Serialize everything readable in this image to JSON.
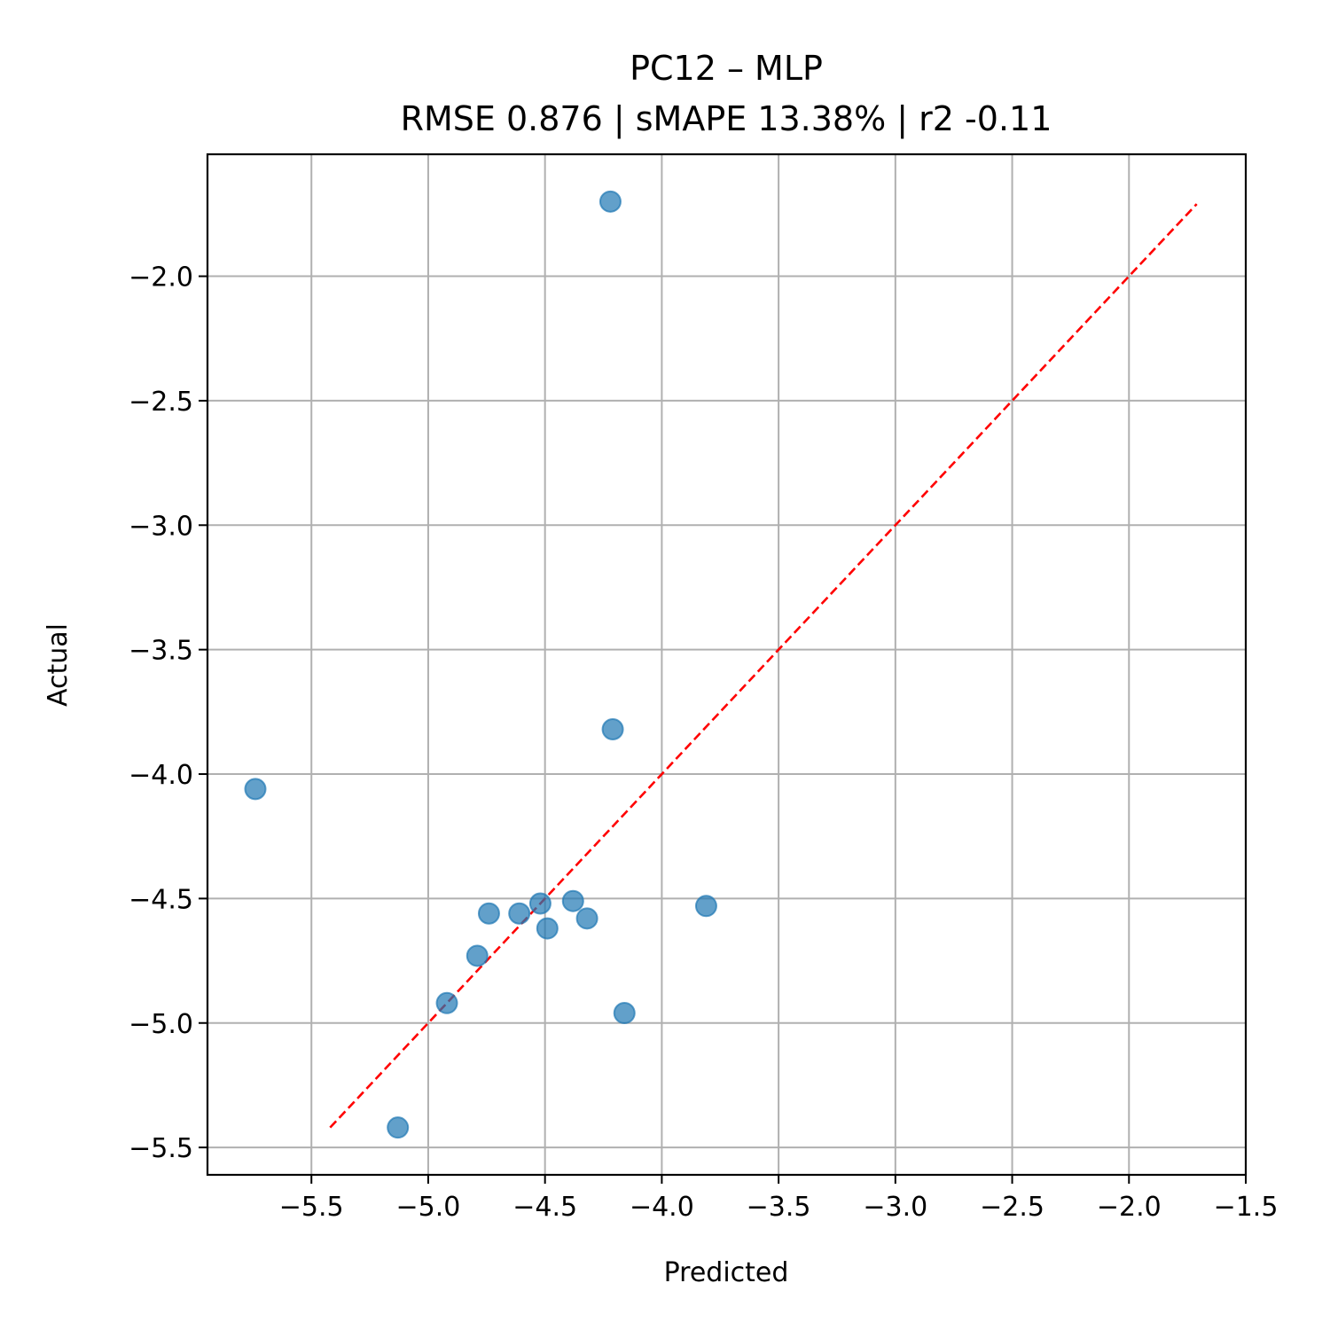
{
  "chart_data": {
    "type": "scatter",
    "title": "PC12 – MLP",
    "subtitle": "RMSE 0.876 | sMAPE 13.38%  | r2 -0.11",
    "xlabel": "Predicted",
    "ylabel": "Actual",
    "xlim": [
      -5.945,
      -1.5
    ],
    "ylim": [
      -5.61,
      -1.51
    ],
    "xticks": [
      -5.5,
      -5.0,
      -4.5,
      -4.0,
      -3.5,
      -3.0,
      -2.5,
      -2.0,
      -1.5
    ],
    "xtick_labels": [
      "−5.5",
      "−5.0",
      "−4.5",
      "−4.0",
      "−3.5",
      "−3.0",
      "−2.5",
      "−2.0",
      "−1.5"
    ],
    "yticks": [
      -2.0,
      -2.5,
      -3.0,
      -3.5,
      -4.0,
      -4.5,
      -5.0,
      -5.5
    ],
    "ytick_labels": [
      "−2.0",
      "−2.5",
      "−3.0",
      "−3.5",
      "−4.0",
      "−4.5",
      "−5.0",
      "−5.5"
    ],
    "grid": true,
    "point_color": "#1f77b4",
    "line_color": "#ff0000",
    "points": [
      {
        "x": -4.22,
        "y": -1.7
      },
      {
        "x": -4.21,
        "y": -3.82
      },
      {
        "x": -5.74,
        "y": -4.06
      },
      {
        "x": -4.52,
        "y": -4.52
      },
      {
        "x": -4.38,
        "y": -4.51
      },
      {
        "x": -3.81,
        "y": -4.53
      },
      {
        "x": -4.61,
        "y": -4.56
      },
      {
        "x": -4.74,
        "y": -4.56
      },
      {
        "x": -4.32,
        "y": -4.58
      },
      {
        "x": -4.49,
        "y": -4.62
      },
      {
        "x": -4.79,
        "y": -4.73
      },
      {
        "x": -4.92,
        "y": -4.92
      },
      {
        "x": -4.16,
        "y": -4.96
      },
      {
        "x": -5.13,
        "y": -5.42
      }
    ],
    "identity_line": {
      "x": [
        -5.42,
        -1.71
      ],
      "y": [
        -5.42,
        -1.71
      ]
    }
  }
}
